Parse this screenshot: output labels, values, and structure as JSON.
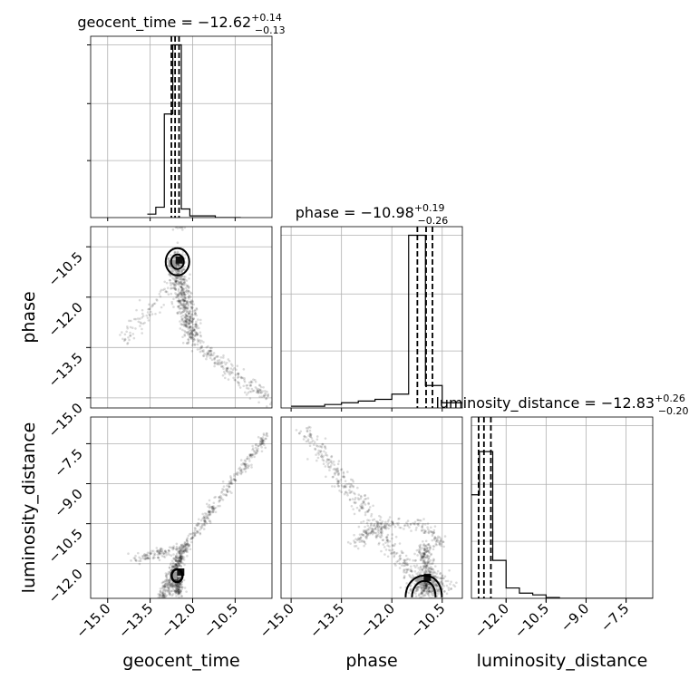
{
  "chart_data": {
    "type": "corner",
    "grid": true,
    "parameters": [
      "geocent_time",
      "phase",
      "luminosity_distance"
    ],
    "axis_labels": [
      "geocent_time",
      "phase",
      "luminosity_distance"
    ],
    "ticks": {
      "geocent_time": {
        "range": [
          -15.6,
          -9.2
        ],
        "ticks": [
          -15.0,
          -13.5,
          -12.0,
          -10.5
        ],
        "labels": [
          "−15.0",
          "−13.5",
          "−12.0",
          "−10.5"
        ]
      },
      "phase": {
        "range": [
          -15.3,
          -9.9
        ],
        "ticks": [
          -15.0,
          -13.5,
          -12.0,
          -10.5
        ],
        "labels": [
          "−15.0",
          "−13.5",
          "−12.0",
          "−10.5"
        ]
      },
      "luminosity_distance": {
        "range": [
          -13.3,
          -6.5
        ],
        "ticks": [
          -12.0,
          -10.5,
          -9.0,
          -7.5
        ],
        "labels": [
          "−12.0",
          "−10.5",
          "−9.0",
          "−7.5"
        ]
      }
    },
    "diagonal": [
      {
        "param": "geocent_time",
        "title": {
          "prefix": "geocent_time = −12.62",
          "plus": "+0.14",
          "minus": "−0.13"
        },
        "quantiles": [
          -12.75,
          -12.62,
          -12.48
        ],
        "bins": {
          "edges": [
            -13.6,
            -13.3,
            -13.0,
            -12.7,
            -12.4,
            -12.1,
            -11.8,
            -11.5,
            -11.2,
            -10.9,
            -10.6,
            -10.3
          ],
          "counts": [
            0.02,
            0.06,
            0.6,
            1.0,
            0.05,
            0.01,
            0.01,
            0.01,
            0.0,
            0.0,
            0.0
          ]
        }
      },
      {
        "param": "phase",
        "title": {
          "prefix": "phase = −10.98",
          "plus": "+0.19",
          "minus": "−0.26"
        },
        "quantiles": [
          -11.24,
          -10.98,
          -10.79
        ],
        "bins": {
          "edges": [
            -15.0,
            -14.5,
            -14.0,
            -13.5,
            -13.0,
            -12.5,
            -12.0,
            -11.5,
            -11.0,
            -10.5,
            -10.0,
            -9.9
          ],
          "counts": [
            0.01,
            0.01,
            0.02,
            0.03,
            0.04,
            0.05,
            0.08,
            1.0,
            0.13,
            0.03,
            0.03
          ]
        }
      },
      {
        "param": "luminosity_distance",
        "title": {
          "prefix": "luminosity_distance = −12.83",
          "plus": "+0.26",
          "minus": "−0.20"
        },
        "quantiles": [
          -13.03,
          -12.83,
          -12.57
        ],
        "bins": {
          "edges": [
            -13.4,
            -13.0,
            -12.5,
            -12.0,
            -11.5,
            -11.0,
            -10.5,
            -10.0,
            -9.5,
            -9.0,
            -8.5,
            -8.0,
            -7.5,
            -6.5
          ],
          "counts": [
            0.6,
            0.85,
            0.22,
            0.06,
            0.03,
            0.02,
            0.005,
            0.0,
            0.0,
            0.0,
            0.0,
            0.0,
            0.0
          ]
        }
      }
    ],
    "scatter_panels": [
      {
        "x": "geocent_time",
        "y": "phase"
      },
      {
        "x": "geocent_time",
        "y": "luminosity_distance"
      },
      {
        "x": "phase",
        "y": "luminosity_distance"
      }
    ]
  }
}
